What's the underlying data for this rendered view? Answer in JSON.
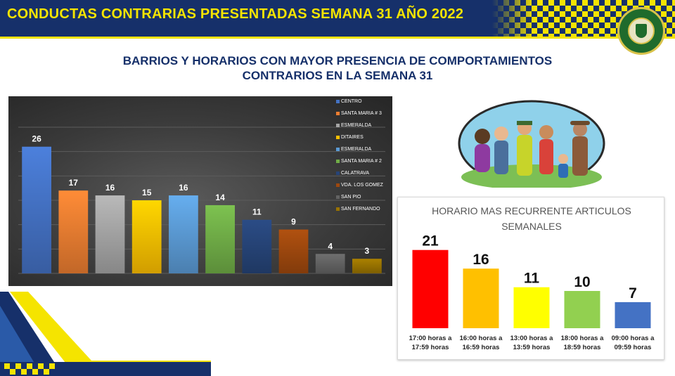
{
  "header": {
    "title": "CONDUCTAS CONTRARIAS PRESENTADAS SEMANA 31 AÑO 2022"
  },
  "subtitle": {
    "line1": "BARRIOS Y HORARIOS CON MAYOR PRESENCIA DE COMPORTAMIENTOS",
    "line2": "CONTRARIOS EN LA SEMANA 31"
  },
  "chart_data": [
    {
      "type": "bar",
      "title": "",
      "categories": [
        "CENTRO",
        "SANTA MARIA # 3",
        "ESMERALDA",
        "DITAIRES",
        "ESMERALDA",
        "SANTA MARIA # 2",
        "CALATRAVA",
        "VDA. LOS GOMEZ",
        "SAN PIO",
        "SAN FERNANDO"
      ],
      "values": [
        26,
        17,
        16,
        15,
        16,
        14,
        11,
        9,
        4,
        3
      ],
      "colors": [
        "#4472c4",
        "#ed7d31",
        "#a5a5a5",
        "#ffc000",
        "#5b9bd5",
        "#70ad47",
        "#264478",
        "#9e480e",
        "#636363",
        "#997300"
      ],
      "ylim": [
        0,
        30
      ],
      "grid": true,
      "legend": "right"
    },
    {
      "type": "bar",
      "title": "HORARIO MAS RECURRENTE ARTICULOS SEMANALES",
      "categories": [
        "17:00 horas a 17:59 horas",
        "16:00 horas a 16:59 horas",
        "13:00 horas a 13:59 horas",
        "18:00 horas a 18:59 horas",
        "09:00 horas a 09:59 horas"
      ],
      "values": [
        21,
        16,
        11,
        10,
        7
      ],
      "colors": [
        "#ff0000",
        "#ffc000",
        "#ffff00",
        "#92d050",
        "#4472c4"
      ],
      "ylim": [
        0,
        24
      ],
      "grid": false,
      "legend": "none"
    }
  ]
}
